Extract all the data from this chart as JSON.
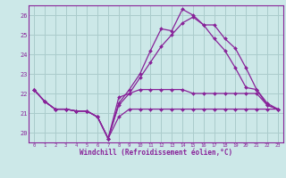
{
  "title": "",
  "xlabel": "Windchill (Refroidissement éolien,°C)",
  "ylabel": "",
  "bg_color": "#cce8e8",
  "grid_color": "#aacccc",
  "line_color": "#882299",
  "xlim": [
    -0.5,
    23.5
  ],
  "ylim": [
    19.5,
    26.5
  ],
  "xticks": [
    0,
    1,
    2,
    3,
    4,
    5,
    6,
    7,
    8,
    9,
    10,
    11,
    12,
    13,
    14,
    15,
    16,
    17,
    18,
    19,
    20,
    21,
    22,
    23
  ],
  "yticks": [
    20,
    21,
    22,
    23,
    24,
    25,
    26
  ],
  "series": [
    [
      22.2,
      21.6,
      21.2,
      21.2,
      21.1,
      21.1,
      20.8,
      19.7,
      20.8,
      21.2,
      21.2,
      21.2,
      21.2,
      21.2,
      21.2,
      21.2,
      21.2,
      21.2,
      21.2,
      21.2,
      21.2,
      21.2,
      21.2,
      21.2
    ],
    [
      22.2,
      21.6,
      21.2,
      21.2,
      21.1,
      21.1,
      20.8,
      19.7,
      21.8,
      22.0,
      22.2,
      22.2,
      22.2,
      22.2,
      22.2,
      22.0,
      22.0,
      22.0,
      22.0,
      22.0,
      22.0,
      22.0,
      21.4,
      21.2
    ],
    [
      22.2,
      21.6,
      21.2,
      21.2,
      21.1,
      21.1,
      20.8,
      19.7,
      21.5,
      22.2,
      23.0,
      24.2,
      25.3,
      25.2,
      26.3,
      26.0,
      25.5,
      25.5,
      24.8,
      24.3,
      23.3,
      22.2,
      21.4,
      21.2
    ],
    [
      22.2,
      21.6,
      21.2,
      21.2,
      21.1,
      21.1,
      20.8,
      19.7,
      21.4,
      22.0,
      22.8,
      23.6,
      24.4,
      25.0,
      25.6,
      25.9,
      25.5,
      24.8,
      24.2,
      23.3,
      22.3,
      22.2,
      21.5,
      21.2
    ]
  ]
}
